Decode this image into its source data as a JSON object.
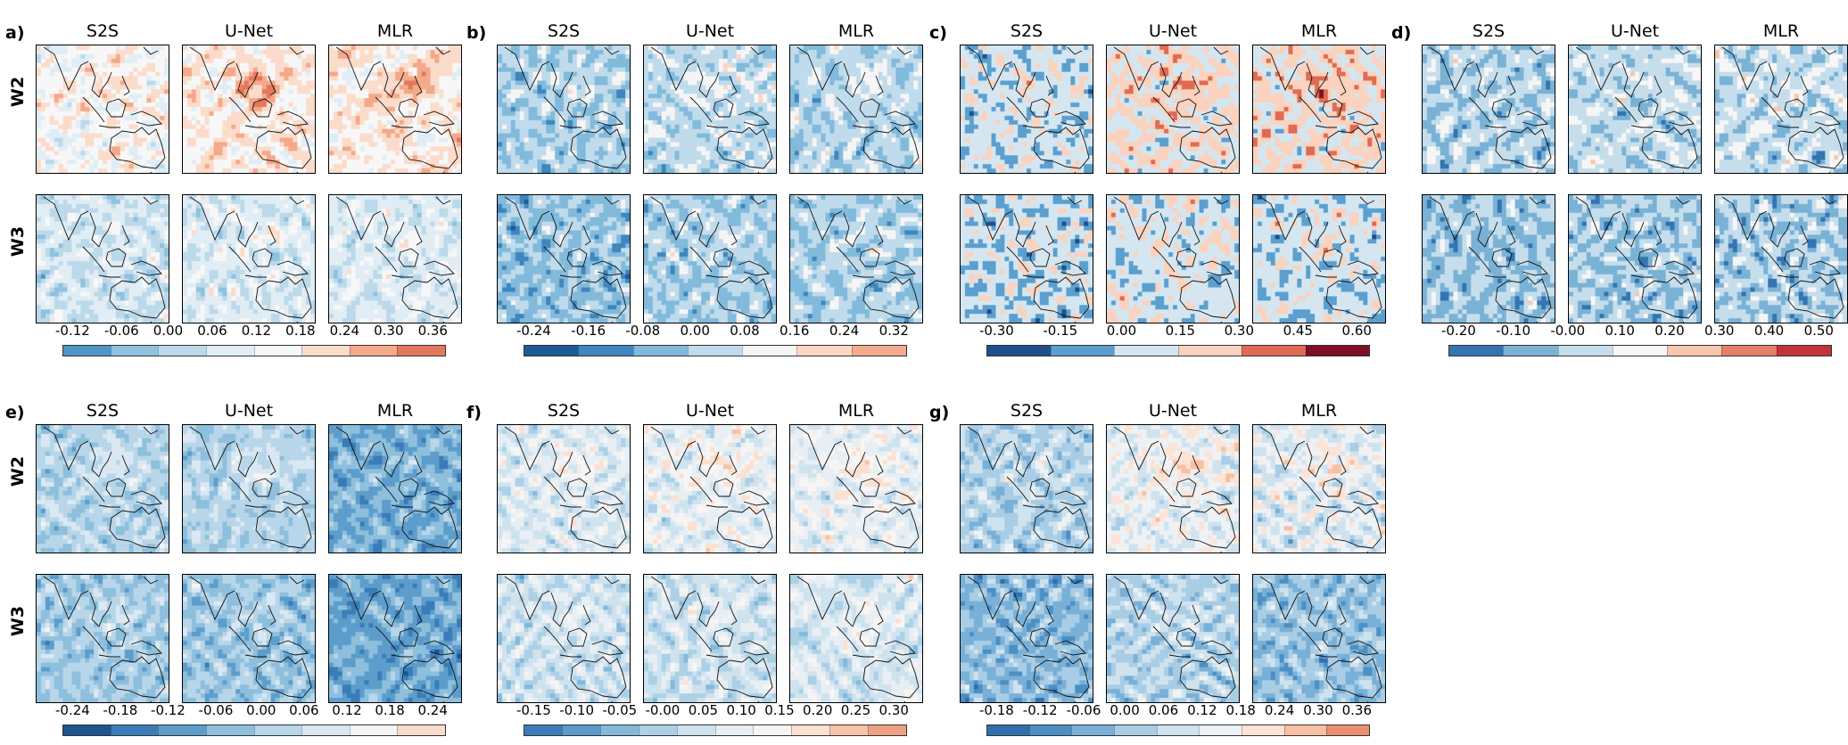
{
  "columns": [
    "S2S",
    "U-Net",
    "MLR"
  ],
  "rows": [
    "W2",
    "W3"
  ],
  "chart_data": [
    {
      "type": "heatmap",
      "panel": "a)",
      "ticks": [
        "-0.12",
        "-0.06",
        "0.00",
        "0.06",
        "0.12",
        "0.18",
        "0.24",
        "0.30",
        "0.36"
      ],
      "colors": [
        "#4f96c8",
        "#8ec2de",
        "#bcd9ea",
        "#e1edf5",
        "#f7f7f7",
        "#fbdccb",
        "#f4a98a",
        "#e4785c"
      ]
    },
    {
      "type": "heatmap",
      "panel": "b)",
      "ticks": [
        "-0.24",
        "-0.16",
        "-0.08",
        "0.00",
        "0.08",
        "0.16",
        "0.24",
        "0.32"
      ],
      "colors": [
        "#1f5a97",
        "#3f86be",
        "#82badb",
        "#c0dbeb",
        "#f5f5f5",
        "#fbd7c4",
        "#f3ac8e"
      ]
    },
    {
      "type": "heatmap",
      "panel": "c)",
      "ticks": [
        "-0.30",
        "-0.15",
        "0.00",
        "0.15",
        "0.30",
        "0.45",
        "0.60"
      ],
      "colors": [
        "#1f4f8c",
        "#5b9fcf",
        "#d5e6f0",
        "#fbd2bd",
        "#df6b54",
        "#7e0f26"
      ]
    },
    {
      "type": "heatmap",
      "panel": "d)",
      "ticks": [
        "-0.20",
        "-0.10",
        "-0.00",
        "0.10",
        "0.20",
        "0.30",
        "0.40",
        "0.50"
      ],
      "colors": [
        "#3574b2",
        "#7ab2d6",
        "#c6deec",
        "#f6f6f6",
        "#f7c6ae",
        "#e4806a",
        "#c0333a"
      ]
    },
    {
      "type": "heatmap",
      "panel": "e)",
      "ticks": [
        "-0.24",
        "-0.18",
        "-0.12",
        "-0.06",
        "0.00",
        "0.06",
        "0.12",
        "0.18",
        "0.24"
      ],
      "colors": [
        "#1d5391",
        "#3a7cb7",
        "#5d9dcc",
        "#8ebfdc",
        "#b8d6e9",
        "#d9e8f2",
        "#f4f4f4",
        "#f9dccb"
      ]
    },
    {
      "type": "heatmap",
      "panel": "f)",
      "ticks": [
        "-0.15",
        "-0.10",
        "-0.05",
        "-0.00",
        "0.05",
        "0.10",
        "0.15",
        "0.20",
        "0.25",
        "0.30"
      ],
      "colors": [
        "#3b7cb8",
        "#5a9bcb",
        "#84b9da",
        "#acd0e6",
        "#cfe3ef",
        "#e8eff4",
        "#f7f5f3",
        "#fbe0d0",
        "#f7c3a8",
        "#eea283"
      ]
    },
    {
      "type": "heatmap",
      "panel": "g)",
      "ticks": [
        "-0.18",
        "-0.12",
        "-0.06",
        "0.00",
        "0.06",
        "0.12",
        "0.18",
        "0.24",
        "0.30",
        "0.36"
      ],
      "colors": [
        "#2f6fae",
        "#4c8fc4",
        "#79b0d7",
        "#a9cde4",
        "#cfe3ef",
        "#eef2f5",
        "#fbe3d5",
        "#f7c0a4",
        "#ea8f72"
      ]
    }
  ]
}
